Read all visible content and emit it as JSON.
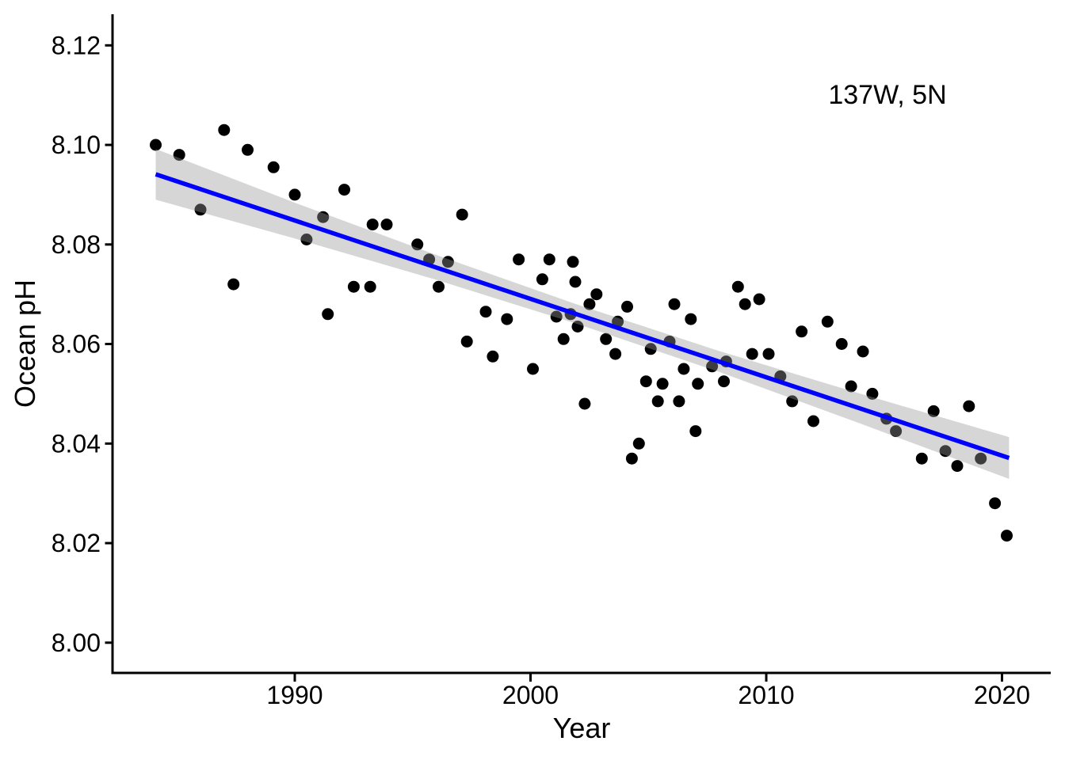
{
  "axes": {
    "x_title": "Year",
    "y_title": "Ocean pH"
  },
  "chart_data": {
    "type": "scatter",
    "title": "",
    "annotation": "137W, 5N",
    "xlabel": "Year",
    "ylabel": "Ocean pH",
    "xlim": [
      1982.3,
      2022.1
    ],
    "ylim": [
      7.994,
      8.126
    ],
    "x_ticks": [
      1990,
      2000,
      2010,
      2020
    ],
    "y_ticks": [
      "8.12",
      "8.10",
      "8.08",
      "8.06",
      "8.04",
      "8.02",
      "8.00"
    ],
    "grid": false,
    "legend_position": "none",
    "point_color": "#000000",
    "trend_color": "#0000FF",
    "band_color": "#999999",
    "band_opacity": 0.4,
    "points": [
      [
        1984.1,
        8.1
      ],
      [
        1985.1,
        8.098
      ],
      [
        1986.0,
        8.087
      ],
      [
        1987.0,
        8.103
      ],
      [
        1987.4,
        8.072
      ],
      [
        1988.0,
        8.099
      ],
      [
        1989.1,
        8.0955
      ],
      [
        1990.0,
        8.09
      ],
      [
        1990.5,
        8.081
      ],
      [
        1991.2,
        8.0855
      ],
      [
        1991.4,
        8.066
      ],
      [
        1992.1,
        8.091
      ],
      [
        1992.5,
        8.0715
      ],
      [
        1993.2,
        8.0715
      ],
      [
        1993.3,
        8.084
      ],
      [
        1993.9,
        8.084
      ],
      [
        1995.2,
        8.08
      ],
      [
        1995.7,
        8.077
      ],
      [
        1996.1,
        8.0715
      ],
      [
        1996.5,
        8.0765
      ],
      [
        1997.1,
        8.086
      ],
      [
        1997.3,
        8.0605
      ],
      [
        1998.1,
        8.0665
      ],
      [
        1998.4,
        8.0575
      ],
      [
        1999.0,
        8.065
      ],
      [
        1999.5,
        8.077
      ],
      [
        2000.1,
        8.055
      ],
      [
        2000.5,
        8.073
      ],
      [
        2000.8,
        8.077
      ],
      [
        2001.1,
        8.0655
      ],
      [
        2001.4,
        8.061
      ],
      [
        2001.7,
        8.066
      ],
      [
        2001.8,
        8.0765
      ],
      [
        2001.9,
        8.0725
      ],
      [
        2002.0,
        8.0635
      ],
      [
        2002.3,
        8.048
      ],
      [
        2002.5,
        8.068
      ],
      [
        2002.8,
        8.07
      ],
      [
        2003.2,
        8.061
      ],
      [
        2003.6,
        8.058
      ],
      [
        2003.7,
        8.0645
      ],
      [
        2004.1,
        8.0675
      ],
      [
        2004.3,
        8.037
      ],
      [
        2004.6,
        8.04
      ],
      [
        2004.9,
        8.0525
      ],
      [
        2005.1,
        8.059
      ],
      [
        2005.4,
        8.0485
      ],
      [
        2005.6,
        8.052
      ],
      [
        2005.9,
        8.0605
      ],
      [
        2006.1,
        8.068
      ],
      [
        2006.3,
        8.0485
      ],
      [
        2006.5,
        8.055
      ],
      [
        2006.8,
        8.065
      ],
      [
        2007.0,
        8.0425
      ],
      [
        2007.1,
        8.052
      ],
      [
        2007.7,
        8.0555
      ],
      [
        2008.2,
        8.0525
      ],
      [
        2008.3,
        8.0565
      ],
      [
        2008.8,
        8.0715
      ],
      [
        2009.1,
        8.068
      ],
      [
        2009.4,
        8.058
      ],
      [
        2009.7,
        8.069
      ],
      [
        2010.1,
        8.058
      ],
      [
        2010.6,
        8.0535
      ],
      [
        2011.1,
        8.0485
      ],
      [
        2011.5,
        8.0625
      ],
      [
        2012.0,
        8.0445
      ],
      [
        2012.6,
        8.0645
      ],
      [
        2013.2,
        8.06
      ],
      [
        2013.6,
        8.0515
      ],
      [
        2014.1,
        8.0585
      ],
      [
        2014.5,
        8.05
      ],
      [
        2015.1,
        8.045
      ],
      [
        2015.5,
        8.0425
      ],
      [
        2016.6,
        8.037
      ],
      [
        2017.1,
        8.0465
      ],
      [
        2017.6,
        8.0385
      ],
      [
        2018.1,
        8.0355
      ],
      [
        2018.6,
        8.0475
      ],
      [
        2019.1,
        8.037
      ],
      [
        2019.7,
        8.028
      ],
      [
        2020.2,
        8.0215
      ]
    ],
    "trend_line": {
      "model": "linear",
      "start": [
        1984.1,
        8.0941
      ],
      "end": [
        2020.3,
        8.0371
      ]
    },
    "confidence_band": [
      [
        1984.1,
        8.089,
        8.0992
      ],
      [
        1990.0,
        8.0812,
        8.0884
      ],
      [
        1996.0,
        8.0729,
        8.0779
      ],
      [
        2002.0,
        8.064,
        8.0679
      ],
      [
        2008.0,
        8.0544,
        8.0586
      ],
      [
        2014.0,
        8.044,
        8.05
      ],
      [
        2020.3,
        8.0329,
        8.0413
      ]
    ]
  }
}
